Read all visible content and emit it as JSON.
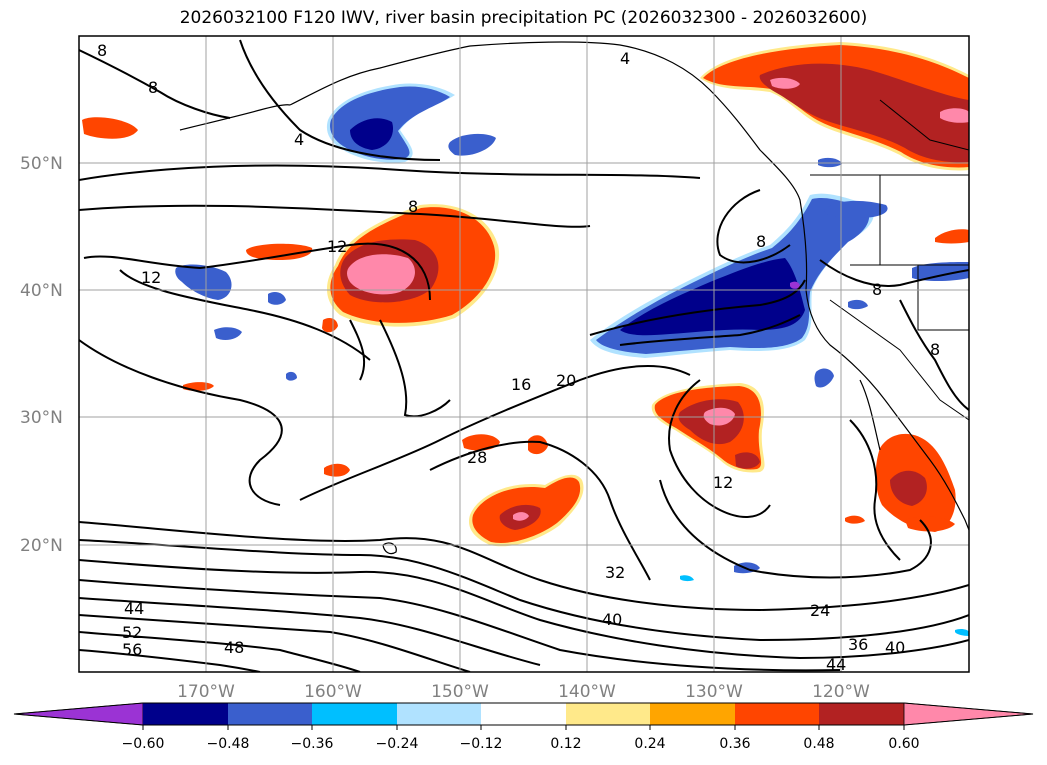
{
  "title": "2026032100 F120 IWV, river basin precipitation PC (2026032300 - 2026032600)",
  "map": {
    "lon_range": [
      -180,
      -110
    ],
    "lat_range": [
      10,
      60
    ],
    "grid": true,
    "lat_labels": [
      "50°N",
      "40°N",
      "30°N",
      "20°N"
    ],
    "lon_labels": [
      "170°W",
      "160°W",
      "150°W",
      "140°W",
      "130°W",
      "120°W"
    ],
    "contour_labels": [
      "8",
      "8",
      "4",
      "4",
      "8",
      "12",
      "12",
      "8",
      "8",
      "8",
      "16",
      "20",
      "28",
      "12",
      "32",
      "40",
      "24",
      "36",
      "40",
      "44",
      "44",
      "52",
      "56",
      "48"
    ]
  },
  "colorbar": {
    "colors": [
      "#9b33d4",
      "#00008b",
      "#3a5fcd",
      "#00bfff",
      "#b0e2ff",
      "#ffffff",
      "#ffe98a",
      "#ffa500",
      "#ff4500",
      "#b22222",
      "#ff88aa"
    ],
    "ticks": [
      "−0.60",
      "−0.48",
      "−0.36",
      "−0.24",
      "−0.12",
      "0.12",
      "0.24",
      "0.36",
      "0.48",
      "0.60"
    ]
  }
}
